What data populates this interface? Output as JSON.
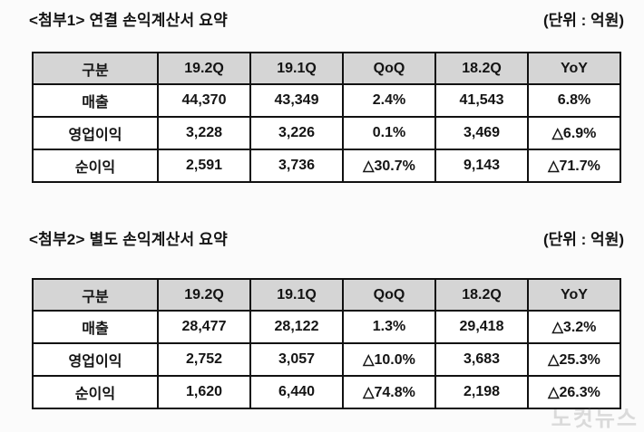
{
  "sections": [
    {
      "title": "<첨부1> 연결 손익계산서 요약",
      "unit": "(단위 : 억원)",
      "table": {
        "headers": [
          "구분",
          "19.2Q",
          "19.1Q",
          "QoQ",
          "18.2Q",
          "YoY"
        ],
        "rows": [
          {
            "label": "매출",
            "values": [
              "44,370",
              "43,349",
              "2.4%",
              "41,543",
              "6.8%"
            ]
          },
          {
            "label": "영업이익",
            "values": [
              "3,228",
              "3,226",
              "0.1%",
              "3,469",
              "△6.9%"
            ]
          },
          {
            "label": "순이익",
            "values": [
              "2,591",
              "3,736",
              "△30.7%",
              "9,143",
              "△71.7%"
            ]
          }
        ]
      }
    },
    {
      "title": "<첨부2> 별도 손익계산서 요약",
      "unit": "(단위 : 억원)",
      "table": {
        "headers": [
          "구분",
          "19.2Q",
          "19.1Q",
          "QoQ",
          "18.2Q",
          "YoY"
        ],
        "rows": [
          {
            "label": "매출",
            "values": [
              "28,477",
              "28,122",
              "1.3%",
              "29,418",
              "△3.2%"
            ]
          },
          {
            "label": "영업이익",
            "values": [
              "2,752",
              "3,057",
              "△10.0%",
              "3,683",
              "△25.3%"
            ]
          },
          {
            "label": "순이익",
            "values": [
              "1,620",
              "6,440",
              "△74.8%",
              "2,198",
              "△26.3%"
            ]
          }
        ]
      }
    }
  ],
  "watermark": "노컷뉴스",
  "colors": {
    "header_background": "#d5d5d5",
    "table_border": "#111111",
    "text": "#141414",
    "page_background": "#fbfbfb"
  }
}
